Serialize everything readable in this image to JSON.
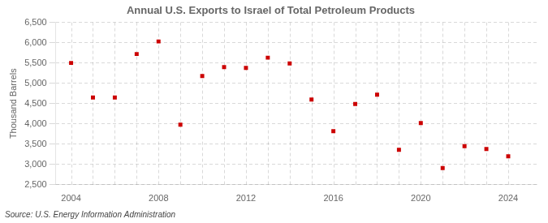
{
  "chart_data": {
    "type": "scatter",
    "title": "Annual U.S. Exports to Israel of Total Petroleum Products",
    "ylabel": "Thousand Barrels",
    "annotation": "Source: U.S. Energy Information Administration",
    "x": [
      2004,
      2005,
      2006,
      2007,
      2008,
      2009,
      2010,
      2011,
      2012,
      2013,
      2014,
      2015,
      2016,
      2017,
      2018,
      2019,
      2020,
      2021,
      2022,
      2023,
      2024
    ],
    "values": [
      5500,
      4650,
      4650,
      5720,
      6030,
      3980,
      5180,
      5400,
      5380,
      5630,
      5490,
      4600,
      3820,
      4490,
      4720,
      3360,
      4020,
      2910,
      3450,
      3380,
      3200
    ],
    "color": "#cc0000",
    "marker": "square",
    "xlim": [
      2003.3,
      2025.3
    ],
    "xticks": [
      2004,
      2008,
      2012,
      2016,
      2020,
      2024
    ],
    "ylim": [
      2500,
      6500
    ],
    "yticks": [
      {
        "value": 2500,
        "label": "2,500"
      },
      {
        "value": 3000,
        "label": "3,000"
      },
      {
        "value": 3500,
        "label": "3,500"
      },
      {
        "value": 4000,
        "label": "4,000"
      },
      {
        "value": 4500,
        "label": "4,500"
      },
      {
        "value": 5000,
        "label": "5,000"
      },
      {
        "value": 5500,
        "label": "5,500"
      },
      {
        "value": 6000,
        "label": "6,000"
      },
      {
        "value": 6500,
        "label": "6,500"
      }
    ],
    "grid": true
  }
}
